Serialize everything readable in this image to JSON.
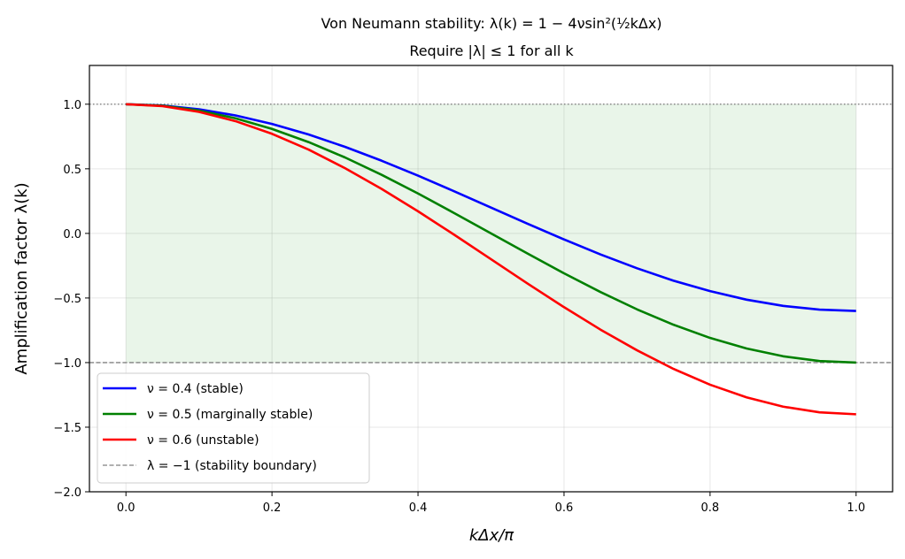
{
  "chart_data": {
    "type": "line",
    "title": "Von Neumann stability: λ(k) = 1 − 4νsin²(½kΔx)",
    "subtitle": "Require |λ| ≤ 1 for all k",
    "xlabel": "kΔx/π",
    "ylabel": "Amplification factor λ(k)",
    "xlim": [
      -0.05,
      1.05
    ],
    "ylim": [
      -2.0,
      1.3
    ],
    "xticks": [
      0.0,
      0.2,
      0.4,
      0.6,
      0.8,
      1.0
    ],
    "xtick_labels": [
      "0.0",
      "0.2",
      "0.4",
      "0.6",
      "0.8",
      "1.0"
    ],
    "yticks": [
      1.0,
      0.5,
      0.0,
      -0.5,
      -1.0,
      -1.5,
      -2.0
    ],
    "ytick_labels": [
      "1.0",
      "0.5",
      "0.0",
      "−0.5",
      "−1.0",
      "−1.5",
      "−2.0"
    ],
    "grid": true,
    "legend_position": "lower-left",
    "x": [
      0,
      0.05,
      0.1,
      0.15,
      0.2,
      0.25,
      0.3,
      0.35,
      0.4,
      0.45,
      0.5,
      0.55,
      0.6,
      0.65,
      0.7,
      0.75,
      0.8,
      0.85,
      0.9,
      0.95,
      1.0
    ],
    "series": [
      {
        "name": "ν = 0.4 (stable)",
        "color": "#0000ff",
        "values": [
          1,
          0.99,
          0.961,
          0.913,
          0.847,
          0.766,
          0.67,
          0.563,
          0.447,
          0.325,
          0.2,
          0.075,
          -0.047,
          -0.163,
          -0.27,
          -0.366,
          -0.447,
          -0.513,
          -0.561,
          -0.59,
          -0.6
        ]
      },
      {
        "name": "ν = 0.5 (marginally stable)",
        "color": "#008000",
        "values": [
          1,
          0.988,
          0.951,
          0.891,
          0.809,
          0.707,
          0.588,
          0.454,
          0.309,
          0.156,
          0,
          -0.156,
          -0.309,
          -0.454,
          -0.588,
          -0.707,
          -0.809,
          -0.891,
          -0.951,
          -0.988,
          -1
        ]
      },
      {
        "name": "ν = 0.6 (unstable)",
        "color": "#ff0000",
        "values": [
          1,
          0.985,
          0.941,
          0.869,
          0.771,
          0.649,
          0.505,
          0.345,
          0.171,
          -0.012,
          -0.2,
          -0.388,
          -0.571,
          -0.745,
          -0.905,
          -1.049,
          -1.171,
          -1.269,
          -1.341,
          -1.385,
          -1.4
        ]
      }
    ],
    "reference_lines": [
      {
        "name": "λ = −1 (stability boundary)",
        "y": -1,
        "style": "dashed",
        "color": "#808080"
      },
      {
        "y": 1,
        "style": "dotted",
        "color": "#808080"
      }
    ],
    "shaded_region": {
      "x": [
        0,
        1
      ],
      "y": [
        -1,
        1
      ],
      "color": "#2ca02c",
      "alpha": 0.1
    }
  }
}
